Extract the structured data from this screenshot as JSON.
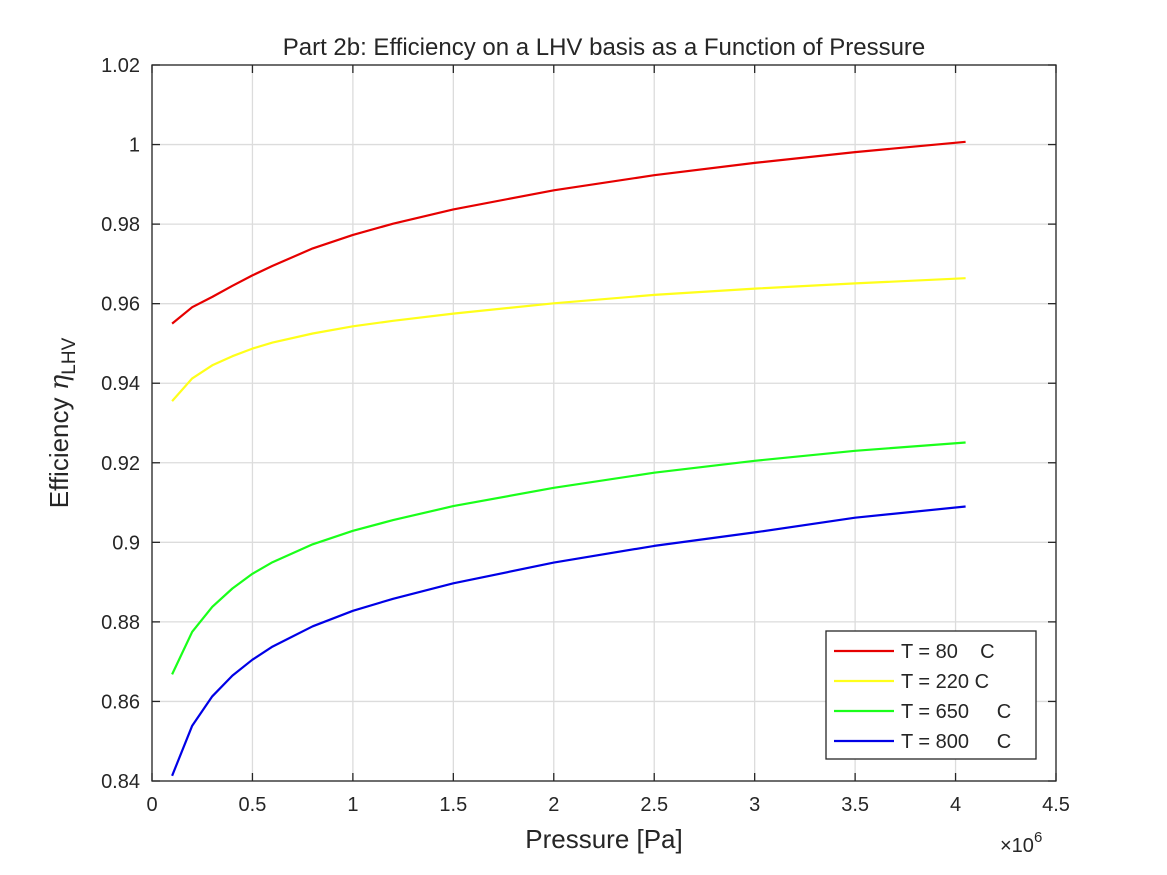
{
  "chart_data": {
    "type": "line",
    "title": "Part 2b: Efficiency on a LHV basis as a Function of Pressure",
    "xlabel": "Pressure [Pa]",
    "ylabel_main": "Efficiency ",
    "ylabel_symbol": "η",
    "ylabel_subscript": "LHV",
    "x_exponent_base": "×10",
    "x_exponent_power": "6",
    "xlim": [
      0,
      4.5
    ],
    "ylim": [
      0.84,
      1.02
    ],
    "x_ticks": [
      0,
      0.5,
      1,
      1.5,
      2,
      2.5,
      3,
      3.5,
      4,
      4.5
    ],
    "x_tick_labels": [
      "0",
      "0.5",
      "1",
      "1.5",
      "2",
      "2.5",
      "3",
      "3.5",
      "4",
      "4.5"
    ],
    "y_ticks": [
      0.84,
      0.86,
      0.88,
      0.9,
      0.92,
      0.94,
      0.96,
      0.98,
      1,
      1.02
    ],
    "y_tick_labels": [
      "0.84",
      "0.86",
      "0.88",
      "0.9",
      "0.92",
      "0.94",
      "0.96",
      "0.98",
      "1",
      "1.02"
    ],
    "grid": true,
    "legend_position": "bottom-right",
    "x": [
      0.1,
      0.2,
      0.3,
      0.4,
      0.5,
      0.6,
      0.8,
      1.0,
      1.2,
      1.5,
      2.0,
      2.5,
      3.0,
      3.5,
      4.05
    ],
    "series": [
      {
        "name": "T = 80    C",
        "color": "#e60000",
        "values": [
          0.955,
          0.9591,
          0.9617,
          0.9645,
          0.9671,
          0.9695,
          0.9739,
          0.9773,
          0.9801,
          0.9837,
          0.9885,
          0.9923,
          0.9954,
          0.9981,
          1.0007
        ]
      },
      {
        "name": "T = 220 C",
        "color": "#ffff1a",
        "values": [
          0.9355,
          0.9412,
          0.9445,
          0.9468,
          0.9487,
          0.9502,
          0.9525,
          0.9543,
          0.9557,
          0.9575,
          0.9601,
          0.9622,
          0.9638,
          0.9651,
          0.9664
        ]
      },
      {
        "name": "T = 650     C",
        "color": "#1aff1a",
        "values": [
          0.8668,
          0.8775,
          0.8838,
          0.8884,
          0.8921,
          0.895,
          0.8995,
          0.9029,
          0.9056,
          0.9091,
          0.9137,
          0.9175,
          0.9205,
          0.923,
          0.9251
        ]
      },
      {
        "name": "T = 800     C",
        "color": "#0000e6",
        "values": [
          0.8413,
          0.8539,
          0.8613,
          0.8665,
          0.8705,
          0.8738,
          0.8789,
          0.8828,
          0.8858,
          0.8897,
          0.8949,
          0.8991,
          0.9025,
          0.9062,
          0.909
        ]
      }
    ]
  }
}
